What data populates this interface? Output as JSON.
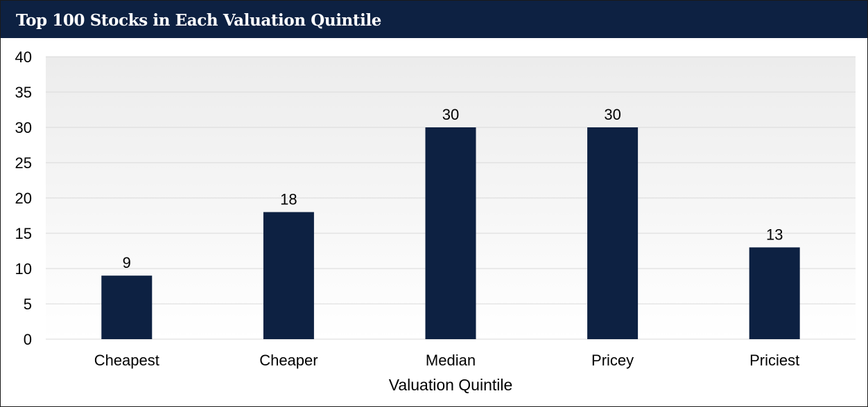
{
  "chart_data": {
    "type": "bar",
    "title": "Top 100 Stocks in Each Valuation Quintile",
    "xlabel": "Valuation Quintile",
    "ylabel": "",
    "categories": [
      "Cheapest",
      "Cheaper",
      "Median",
      "Pricey",
      "Priciest"
    ],
    "values": [
      9,
      18,
      30,
      30,
      13
    ],
    "data_labels": [
      "9",
      "18",
      "30",
      "30",
      "13"
    ],
    "ylim": [
      0,
      40
    ],
    "yticks": [
      0,
      5,
      10,
      15,
      20,
      25,
      30,
      35,
      40
    ],
    "ytick_labels": [
      "0",
      "5",
      "10",
      "15",
      "20",
      "25",
      "30",
      "35",
      "40"
    ],
    "grid": true,
    "legend": "none",
    "colors": {
      "bar": "#0d2142",
      "title_bar": "#0d2142",
      "title_text": "#ffffff",
      "gridline": "#d9d9d9",
      "plot_background_top": "#ececec",
      "plot_background_bottom": "#ffffff"
    }
  }
}
